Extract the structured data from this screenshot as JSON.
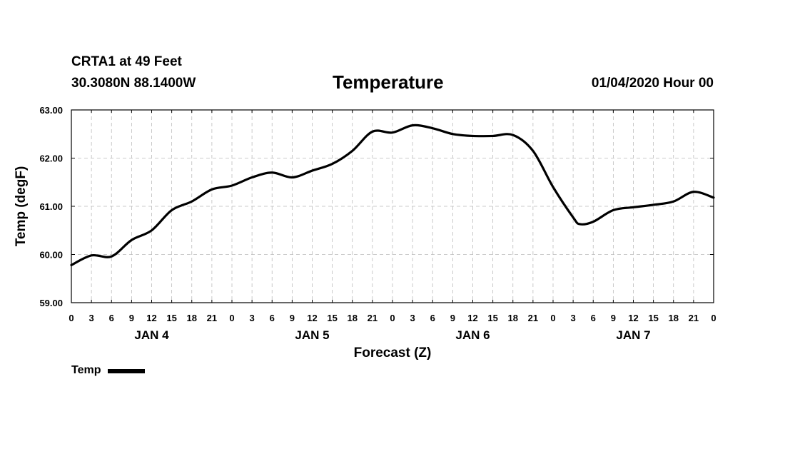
{
  "header": {
    "station": "CRTA1 at 49 Feet",
    "coords": "30.3080N 88.1400W",
    "title": "Temperature",
    "issued": "01/04/2020 Hour 00"
  },
  "legend": {
    "label": "Temp"
  },
  "chart_data": {
    "type": "line",
    "title": "Temperature",
    "xlabel": "Forecast (Z)",
    "ylabel": "Temp (degF)",
    "ylim": [
      59.0,
      63.0
    ],
    "yticks": [
      "59.00",
      "60.00",
      "61.00",
      "62.00",
      "63.00"
    ],
    "grid": true,
    "legend_position": "bottom-left",
    "xticks": [
      "0",
      "3",
      "6",
      "9",
      "12",
      "15",
      "18",
      "21",
      "0",
      "3",
      "6",
      "9",
      "12",
      "15",
      "18",
      "21",
      "0",
      "3",
      "6",
      "9",
      "12",
      "15",
      "18",
      "21",
      "0",
      "3",
      "6",
      "9",
      "12",
      "15",
      "18",
      "21",
      "0"
    ],
    "days": [
      "JAN 4",
      "JAN 5",
      "JAN 6",
      "JAN 7"
    ],
    "series": [
      {
        "name": "Temp",
        "color": "#000000",
        "x": [
          "2020-01-04 00Z",
          "2020-01-04 03Z",
          "2020-01-04 06Z",
          "2020-01-04 09Z",
          "2020-01-04 12Z",
          "2020-01-04 15Z",
          "2020-01-04 18Z",
          "2020-01-04 21Z",
          "2020-01-05 00Z",
          "2020-01-05 03Z",
          "2020-01-05 06Z",
          "2020-01-05 09Z",
          "2020-01-05 12Z",
          "2020-01-05 15Z",
          "2020-01-05 18Z",
          "2020-01-05 21Z",
          "2020-01-06 00Z",
          "2020-01-06 03Z",
          "2020-01-06 06Z",
          "2020-01-06 09Z",
          "2020-01-06 12Z",
          "2020-01-06 15Z",
          "2020-01-06 18Z",
          "2020-01-06 21Z",
          "2020-01-07 00Z",
          "2020-01-07 03Z",
          "2020-01-07 04Z",
          "2020-01-07 06Z",
          "2020-01-07 09Z",
          "2020-01-07 12Z",
          "2020-01-07 15Z",
          "2020-01-07 18Z",
          "2020-01-07 21Z",
          "2020-01-08 00Z"
        ],
        "values": [
          59.78,
          59.98,
          59.96,
          60.3,
          60.5,
          60.92,
          61.1,
          61.35,
          61.43,
          61.6,
          61.7,
          61.6,
          61.74,
          61.88,
          62.15,
          62.55,
          62.53,
          62.68,
          62.62,
          62.5,
          62.46,
          62.46,
          62.48,
          62.15,
          61.4,
          60.77,
          60.63,
          60.68,
          60.92,
          60.98,
          61.03,
          61.1,
          61.3,
          61.18
        ]
      }
    ]
  }
}
